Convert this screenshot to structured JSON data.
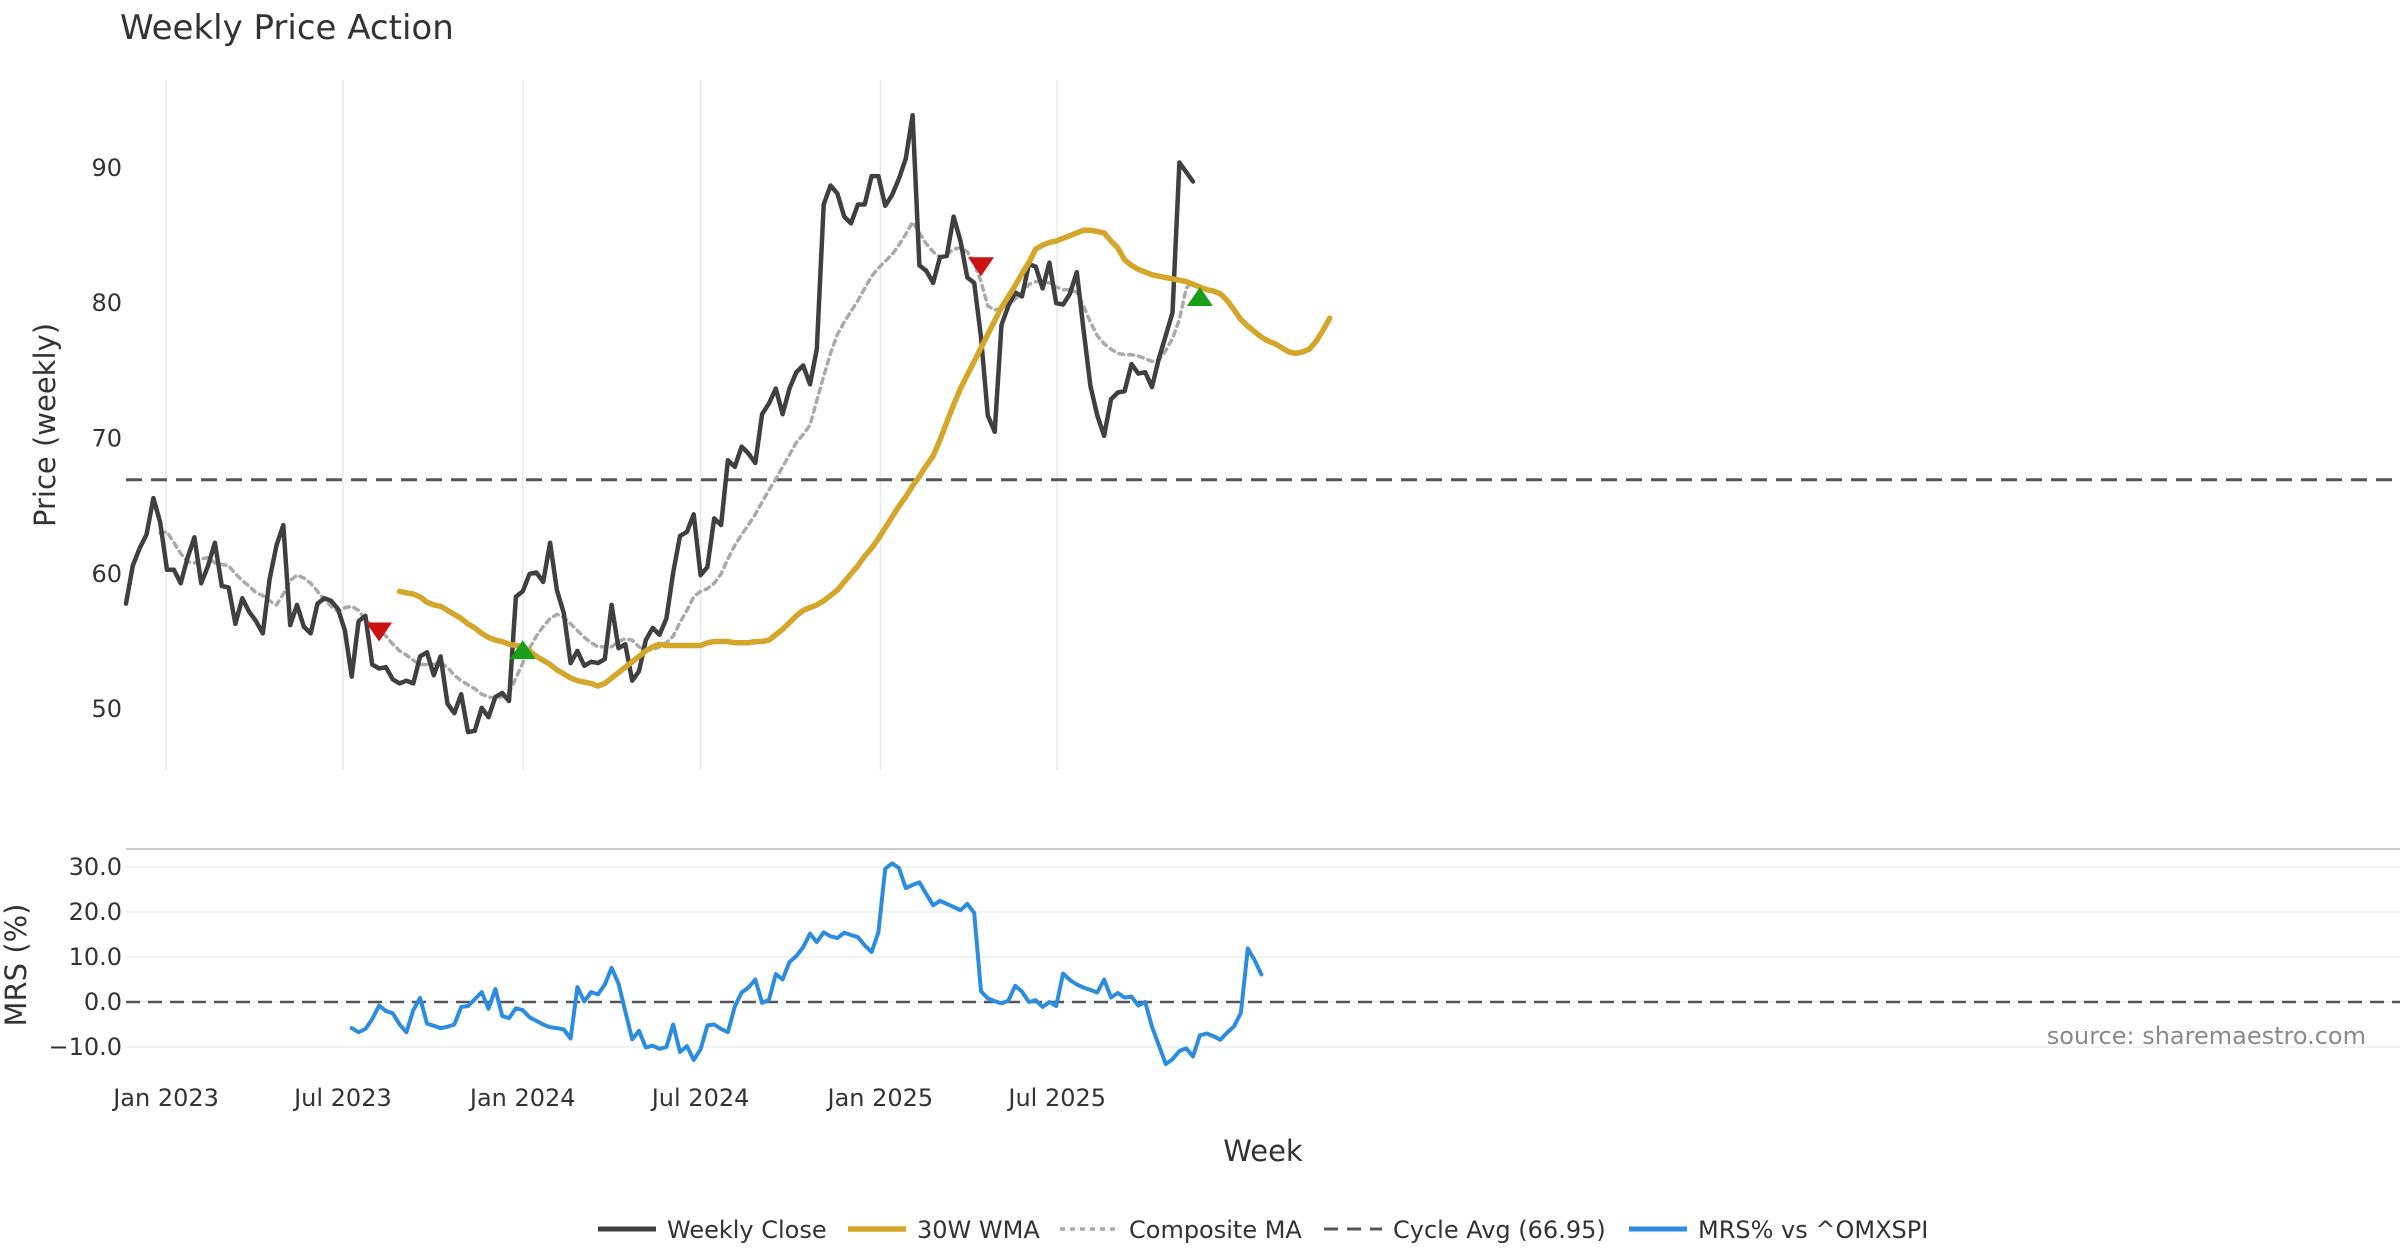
{
  "chart_data": {
    "type": "line",
    "title": "Weekly Price Action",
    "xlabel": "Week",
    "ylabel": "Price (weekly)",
    "ylabel_lower": "MRS (%)",
    "source": "source: sharemaestro.com",
    "x_ticks": [
      "Jan 2023",
      "Jul 2023",
      "Jan 2024",
      "Jul 2024",
      "Jan 2025",
      "Jul 2025"
    ],
    "y_ticks": [
      "50",
      "60",
      "70",
      "80",
      "90"
    ],
    "y_ticks_lower": [
      "30.0",
      "20.0",
      "10.0",
      "0.0",
      "−10.0"
    ],
    "ylim": [
      45.5,
      96.5
    ],
    "ylim_lower": [
      -16,
      34
    ],
    "grid": "vertical",
    "legend_position": "bottom",
    "colors": {
      "close": "#404040",
      "wma": "#d4a62a",
      "composite": "#aaaaaa",
      "cycle": "#555555",
      "mrs": "#2b8ce0",
      "buy": "#1a9e1a",
      "sell": "#cc1111"
    },
    "legend": [
      "Weekly Close",
      "30W WMA",
      "Composite MA",
      "Cycle Avg (66.95)",
      "MRS% vs ^OMXSPI"
    ],
    "cycle_avg": 66.95,
    "x_start": "2022-11-21",
    "series": [
      {
        "name": "Weekly Close",
        "values": [
          57.8,
          60.6,
          61.9,
          62.9,
          65.6,
          63.8,
          60.3,
          60.3,
          59.3,
          61.2,
          62.7,
          59.3,
          60.6,
          62.3,
          59.1,
          59.0,
          56.3,
          58.2,
          57.2,
          56.5,
          55.6,
          59.6,
          62.1,
          63.6,
          56.2,
          57.7,
          56.1,
          55.6,
          57.8,
          58.2,
          58.0,
          57.4,
          55.8,
          52.4,
          56.5,
          56.9,
          53.3,
          53.0,
          53.1,
          52.2,
          51.9,
          52.1,
          51.9,
          53.9,
          54.2,
          52.5,
          53.9,
          50.4,
          49.7,
          51.1,
          48.3,
          48.4,
          50.1,
          49.4,
          50.9,
          51.2,
          50.6,
          58.3,
          58.7,
          60.0,
          60.1,
          59.4,
          62.3,
          58.8,
          57.1,
          53.4,
          54.3,
          53.2,
          53.5,
          53.4,
          53.7,
          57.7,
          54.5,
          54.8,
          52.1,
          52.8,
          55.1,
          56.0,
          55.5,
          56.7,
          60.1,
          62.8,
          63.1,
          64.4,
          59.9,
          60.5,
          64.1,
          63.6,
          68.4,
          67.9,
          69.4,
          68.9,
          68.2,
          71.8,
          72.6,
          73.7,
          71.8,
          73.7,
          74.9,
          75.4,
          74.0,
          76.6,
          87.3,
          88.7,
          88.1,
          86.4,
          85.9,
          87.3,
          87.3,
          89.4,
          89.4,
          87.2,
          88.0,
          89.2,
          90.7,
          93.9,
          82.8,
          82.4,
          81.5,
          83.4,
          83.5,
          86.4,
          84.6,
          81.9,
          81.5,
          77.5,
          71.7,
          70.5,
          78.4,
          79.8,
          80.8,
          80.5,
          82.9,
          82.7,
          81.1,
          83.0,
          80.0,
          79.9,
          80.7,
          82.3,
          78.0,
          73.9,
          71.7,
          70.2,
          72.9,
          73.4,
          73.5,
          75.5,
          74.8,
          74.9,
          73.8,
          75.9,
          77.6,
          79.3,
          90.4,
          89.7,
          89.0
        ]
      },
      {
        "name": "30W WMA",
        "start_index": 40,
        "values": [
          58.7,
          58.6,
          58.5,
          58.3,
          57.9,
          57.7,
          57.6,
          57.3,
          57.0,
          56.7,
          56.3,
          56.0,
          55.6,
          55.3,
          55.1,
          55.0,
          54.8,
          54.7,
          54.6,
          54.3,
          53.9,
          53.6,
          53.3,
          52.9,
          52.6,
          52.3,
          52.1,
          52.0,
          51.9,
          51.7,
          51.9,
          52.3,
          52.7,
          53.1,
          53.5,
          53.9,
          54.3,
          54.6,
          54.8,
          54.7,
          54.7,
          54.7,
          54.7,
          54.7,
          54.7,
          54.9,
          55.0,
          55.0,
          55.0,
          54.9,
          54.9,
          54.9,
          55.0,
          55.0,
          55.1,
          55.5,
          55.9,
          56.4,
          56.9,
          57.3,
          57.5,
          57.7,
          58.0,
          58.4,
          58.8,
          59.4,
          60.0,
          60.6,
          61.3,
          61.9,
          62.6,
          63.4,
          64.2,
          65.0,
          65.7,
          66.5,
          67.2,
          68.0,
          68.7,
          69.9,
          71.2,
          72.5,
          73.7,
          74.7,
          75.7,
          76.7,
          77.7,
          78.7,
          79.7,
          80.5,
          81.3,
          82.2,
          83.0,
          84.0,
          84.3,
          84.5,
          84.6,
          84.8,
          85.0,
          85.2,
          85.4,
          85.4,
          85.3,
          85.2,
          84.6,
          84.1,
          83.2,
          82.8,
          82.5,
          82.3,
          82.1,
          82.0,
          81.9,
          81.8,
          81.7,
          81.6,
          81.4,
          81.2,
          81.0,
          80.9,
          80.7,
          80.2,
          79.5,
          78.8,
          78.3,
          77.9,
          77.5,
          77.2,
          77.0,
          76.7,
          76.4,
          76.3,
          76.4,
          76.6,
          77.2,
          78.0,
          78.9
        ]
      },
      {
        "name": "Composite MA",
        "start_index": 5,
        "values": [
          63.0,
          63.1,
          62.3,
          61.5,
          60.9,
          60.8,
          61.1,
          61.2,
          60.8,
          60.7,
          60.6,
          60.0,
          59.5,
          59.1,
          58.6,
          58.4,
          58.0,
          57.7,
          58.5,
          59.5,
          59.9,
          59.7,
          59.3,
          58.7,
          58.1,
          57.6,
          57.2,
          57.5,
          57.6,
          57.3,
          56.6,
          56.1,
          55.9,
          55.4,
          54.8,
          54.3,
          54.0,
          53.6,
          53.3,
          53.3,
          53.3,
          53.4,
          53.1,
          52.5,
          52.1,
          51.8,
          51.5,
          51.1,
          50.9,
          50.8,
          50.9,
          51.2,
          52.3,
          53.4,
          54.5,
          55.4,
          56.1,
          56.7,
          57.0,
          56.8,
          56.3,
          55.8,
          55.3,
          54.9,
          54.6,
          54.6,
          54.6,
          55.0,
          55.2,
          55.1,
          54.6,
          54.4,
          54.4,
          54.6,
          54.9,
          55.4,
          56.4,
          57.3,
          58.3,
          58.7,
          58.9,
          59.3,
          60.0,
          61.1,
          62.1,
          62.9,
          63.6,
          64.4,
          65.3,
          66.2,
          67.0,
          67.9,
          68.8,
          69.7,
          70.3,
          71.0,
          72.8,
          74.6,
          76.3,
          77.7,
          78.6,
          79.4,
          80.2,
          81.1,
          82.0,
          82.6,
          83.1,
          83.6,
          84.3,
          85.1,
          86.0,
          85.2,
          84.4,
          83.8,
          83.4,
          83.6,
          84.0,
          84.1,
          83.8,
          83.0,
          81.6,
          79.8,
          79.5,
          79.6,
          79.9,
          80.3,
          80.8,
          81.4,
          81.6,
          81.6,
          81.5,
          81.2,
          81.0,
          81.0,
          80.8,
          79.8,
          78.6,
          77.6,
          77.0,
          76.6,
          76.3,
          76.2,
          76.2,
          76.1,
          75.9,
          75.7,
          75.8,
          76.5,
          77.4,
          78.8,
          81.1,
          81.7
        ]
      },
      {
        "name": "MRS% vs ^OMXSPI",
        "panel": "lower",
        "start_index": 33,
        "values": [
          -5.8,
          -6.7,
          -6.0,
          -3.8,
          -0.8,
          -2.0,
          -2.5,
          -5.0,
          -6.7,
          -1.8,
          0.9,
          -4.8,
          -5.3,
          -5.8,
          -5.5,
          -5.0,
          -1.1,
          -0.9,
          0.6,
          2.2,
          -1.5,
          2.9,
          -3.1,
          -3.6,
          -1.4,
          -1.8,
          -3.4,
          -4.2,
          -5.0,
          -5.6,
          -5.8,
          -6.1,
          -8.1,
          3.3,
          0.1,
          2.2,
          1.7,
          3.9,
          7.6,
          4.1,
          -2.1,
          -8.3,
          -6.4,
          -10.1,
          -9.7,
          -10.4,
          -10.0,
          -5.0,
          -11.1,
          -9.8,
          -12.9,
          -10.5,
          -5.2,
          -5.0,
          -6.0,
          -6.7,
          -1.0,
          2.1,
          3.2,
          5.0,
          -0.2,
          0.5,
          6.2,
          5.0,
          8.9,
          10.2,
          12.2,
          15.2,
          13.3,
          15.5,
          14.6,
          14.2,
          15.4,
          14.9,
          14.4,
          12.6,
          11.1,
          15.5,
          29.6,
          30.8,
          29.8,
          25.3,
          26.0,
          26.6,
          24.0,
          21.5,
          22.5,
          21.8,
          21.1,
          20.4,
          21.8,
          19.8,
          2.4,
          0.8,
          0.2,
          -0.3,
          0.3,
          3.6,
          2.3,
          0.0,
          0.4,
          -1.1,
          0.0,
          -0.9,
          6.3,
          4.9,
          3.9,
          3.2,
          2.7,
          2.1,
          5.0,
          1.0,
          2.0,
          1.0,
          1.2,
          -0.8,
          0.0,
          -5.5,
          -9.6,
          -13.8,
          -12.7,
          -10.9,
          -10.3,
          -12.1,
          -7.4,
          -7.0,
          -7.6,
          -8.4,
          -6.8,
          -5.4,
          -2.4,
          11.9,
          9.3,
          6.1
        ]
      }
    ],
    "signals": [
      {
        "type": "sell",
        "week": "2023-08-07",
        "value": 55.7
      },
      {
        "type": "buy",
        "week": "2024-01-01",
        "value": 54.4
      },
      {
        "type": "sell",
        "week": "2025-04-14",
        "value": 82.7
      },
      {
        "type": "buy",
        "week": "2025-11-24",
        "value": 80.5
      }
    ]
  }
}
